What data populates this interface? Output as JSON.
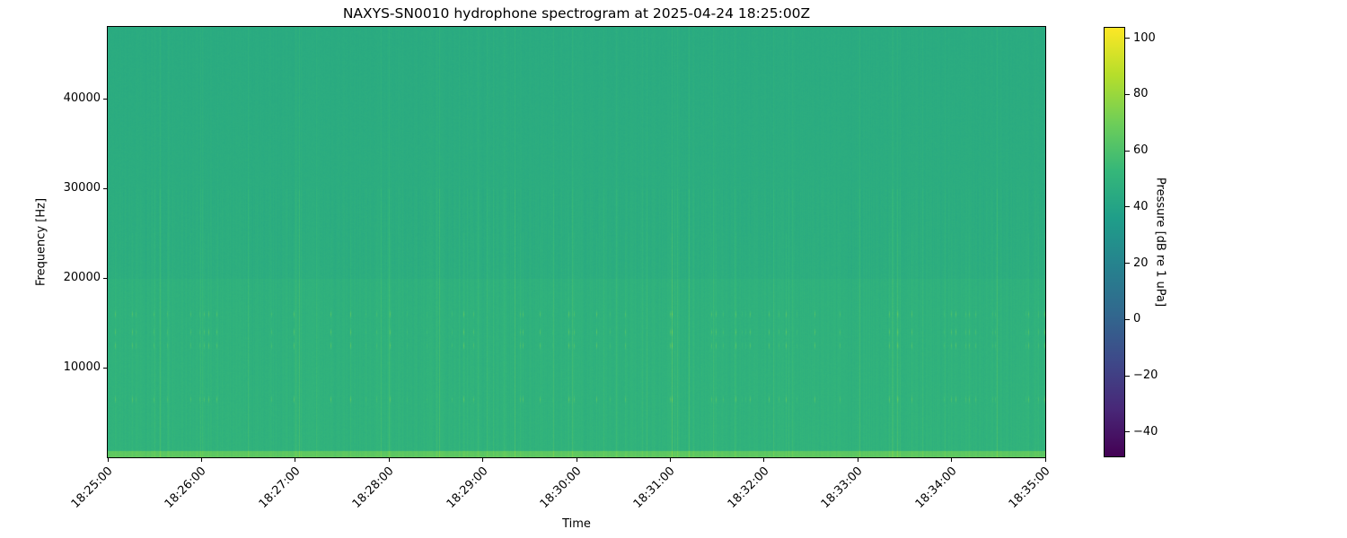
{
  "chart_data": {
    "type": "heatmap",
    "title": "NAXYS-SN0010 hydrophone spectrogram at 2025-04-24 18:25:00Z",
    "xlabel": "Time",
    "ylabel": "Frequency [Hz]",
    "x_ticks": [
      "18:25:00",
      "18:26:00",
      "18:27:00",
      "18:28:00",
      "18:29:00",
      "18:30:00",
      "18:31:00",
      "18:32:00",
      "18:33:00",
      "18:34:00",
      "18:35:00"
    ],
    "xlim": [
      "18:25:00",
      "18:35:00"
    ],
    "y_ticks": [
      10000,
      20000,
      30000,
      40000
    ],
    "ylim": [
      0,
      48000
    ],
    "colorbar": {
      "label": "Pressure [dB re 1 uPa]",
      "ticks": [
        -40,
        -20,
        0,
        20,
        40,
        60,
        80,
        100
      ],
      "clim": [
        -49,
        104
      ],
      "colormap": "viridis"
    },
    "typical_level_db": 48,
    "bright_bands_hz": [
      6500,
      12500,
      14000,
      16000
    ],
    "low_freq_band_db": 65
  }
}
